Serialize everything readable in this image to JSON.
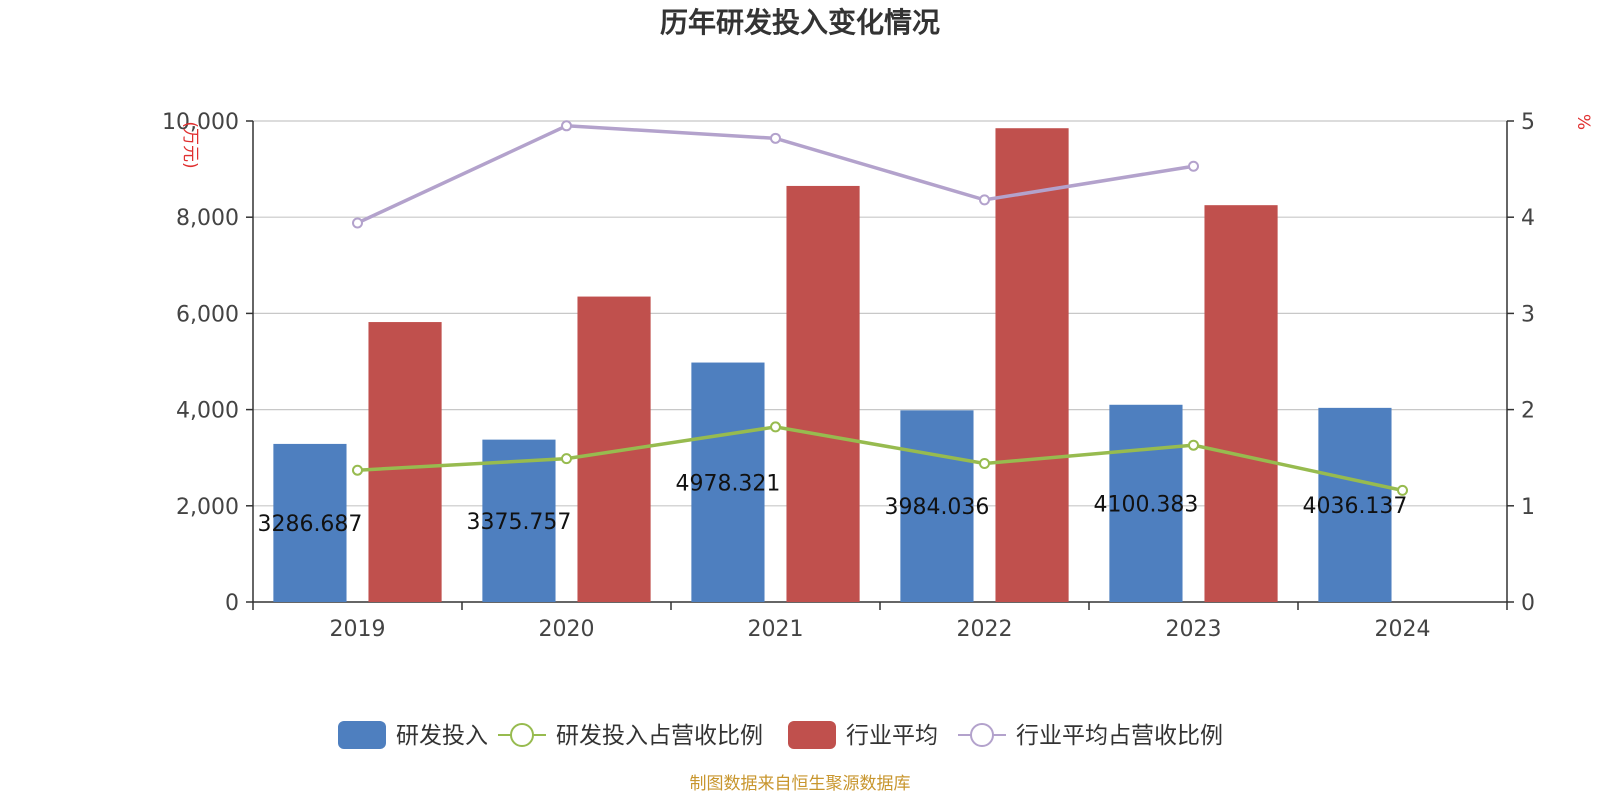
{
  "chart_data": {
    "title": "历年研发投入变化情况",
    "categories": [
      "2019",
      "2020",
      "2021",
      "2022",
      "2023",
      "2024"
    ],
    "y_left": {
      "unit": "(万元)",
      "min": 0,
      "max": 10000,
      "ticks": [
        "0",
        "2,000",
        "4,000",
        "6,000",
        "8,000",
        "10,000"
      ]
    },
    "y_right": {
      "unit": "%",
      "min": 0,
      "max": 5,
      "ticks": [
        "0",
        "1",
        "2",
        "3",
        "4",
        "5"
      ]
    },
    "series": [
      {
        "name": "研发投入",
        "type": "bar",
        "axis": "left",
        "color": "#4e7fbf",
        "values": [
          3286.687,
          3375.757,
          4978.321,
          3984.036,
          4100.383,
          4036.137
        ],
        "labels": [
          "3286.687",
          "3375.757",
          "4978.321",
          "3984.036",
          "4100.383",
          "4036.137"
        ]
      },
      {
        "name": "研发投入占营收比例",
        "type": "line",
        "axis": "right",
        "color": "#97bb4f",
        "values": [
          1.37,
          1.49,
          1.82,
          1.44,
          1.63,
          1.16
        ]
      },
      {
        "name": "行业平均",
        "type": "bar",
        "axis": "left",
        "color": "#c0504d",
        "values": [
          5820,
          6350,
          8650,
          9850,
          8250,
          null
        ]
      },
      {
        "name": "行业平均占营收比例",
        "type": "line",
        "axis": "right",
        "color": "#b3a2cc",
        "values": [
          3.94,
          4.95,
          4.82,
          4.18,
          4.53,
          null
        ]
      }
    ],
    "grid": true,
    "legend_position": "bottom"
  },
  "source": "制图数据来自恒生聚源数据库"
}
